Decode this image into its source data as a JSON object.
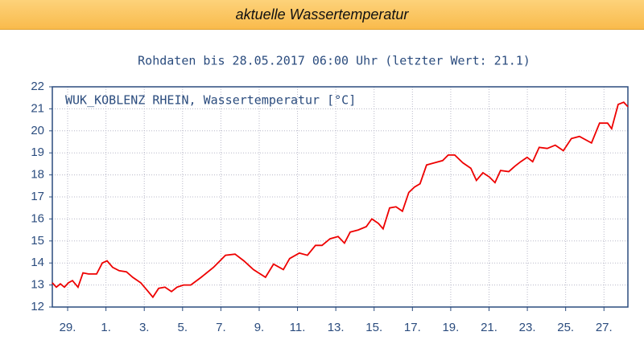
{
  "header": {
    "title": "aktuelle Wassertemperatur"
  },
  "chart_data": {
    "type": "line",
    "title": "Rohdaten bis 28.05.2017 06:00 Uhr (letzter Wert: 21.1)",
    "x": [
      0.2,
      0.41,
      0.62,
      0.83,
      1.04,
      1.25,
      1.54,
      1.8,
      2.09,
      2.51,
      2.81,
      3.06,
      3.35,
      3.69,
      4.07,
      4.4,
      4.82,
      5.16,
      5.45,
      5.75,
      6.08,
      6.42,
      6.71,
      7.05,
      7.43,
      7.97,
      8.61,
      9.24,
      9.74,
      10.2,
      10.7,
      11.33,
      11.75,
      12.26,
      12.59,
      13.1,
      13.52,
      13.94,
      14.28,
      14.7,
      15.12,
      15.45,
      15.75,
      16.17,
      16.59,
      16.88,
      17.22,
      17.47,
      17.81,
      18.14,
      18.48,
      18.81,
      19.11,
      19.4,
      19.74,
      20.16,
      20.58,
      20.87,
      21.21,
      21.63,
      22.05,
      22.34,
      22.68,
      23.02,
      23.31,
      23.6,
      24.03,
      24.36,
      24.65,
      24.99,
      25.28,
      25.62,
      26.04,
      26.46,
      26.88,
      27.3,
      27.72,
      28.35,
      28.77,
      29.19,
      29.4,
      29.74,
      30.03,
      30.25
    ],
    "series": [
      {
        "name": "WUK_KOBLENZ RHEIN, Wassertemperatur [°C]",
        "color": "#ee0000",
        "values": [
          13.1,
          12.9,
          13.05,
          12.9,
          13.1,
          13.2,
          12.9,
          13.55,
          13.5,
          13.5,
          14.0,
          14.1,
          13.8,
          13.65,
          13.6,
          13.35,
          13.1,
          12.75,
          12.45,
          12.85,
          12.9,
          12.7,
          12.9,
          13.0,
          13.0,
          13.35,
          13.8,
          14.35,
          14.4,
          14.1,
          13.7,
          13.35,
          13.95,
          13.7,
          14.2,
          14.45,
          14.35,
          14.8,
          14.8,
          15.1,
          15.2,
          14.9,
          15.4,
          15.5,
          15.65,
          16.0,
          15.8,
          15.55,
          16.5,
          16.55,
          16.35,
          17.2,
          17.45,
          17.6,
          18.45,
          18.55,
          18.65,
          18.9,
          18.9,
          18.55,
          18.3,
          17.75,
          18.1,
          17.9,
          17.65,
          18.2,
          18.15,
          18.4,
          18.6,
          18.8,
          18.6,
          19.25,
          19.2,
          19.35,
          19.1,
          19.65,
          19.75,
          19.45,
          20.35,
          20.35,
          20.1,
          21.2,
          21.3,
          21.1
        ]
      }
    ],
    "xlim": [
      0.2,
      30.25
    ],
    "xticks": [
      {
        "value": 1,
        "label": "29."
      },
      {
        "value": 3,
        "label": "1."
      },
      {
        "value": 5,
        "label": "3."
      },
      {
        "value": 7,
        "label": "5."
      },
      {
        "value": 9,
        "label": "7."
      },
      {
        "value": 11,
        "label": "9."
      },
      {
        "value": 13,
        "label": "11."
      },
      {
        "value": 15,
        "label": "13."
      },
      {
        "value": 17,
        "label": "15."
      },
      {
        "value": 19,
        "label": "17."
      },
      {
        "value": 21,
        "label": "19."
      },
      {
        "value": 23,
        "label": "21."
      },
      {
        "value": 25,
        "label": "23."
      },
      {
        "value": 27,
        "label": "25."
      },
      {
        "value": 29,
        "label": "27."
      }
    ],
    "ylim": [
      12,
      22
    ],
    "yticks": [
      12,
      13,
      14,
      15,
      16,
      17,
      18,
      19,
      20,
      21,
      22
    ],
    "grid": true
  }
}
